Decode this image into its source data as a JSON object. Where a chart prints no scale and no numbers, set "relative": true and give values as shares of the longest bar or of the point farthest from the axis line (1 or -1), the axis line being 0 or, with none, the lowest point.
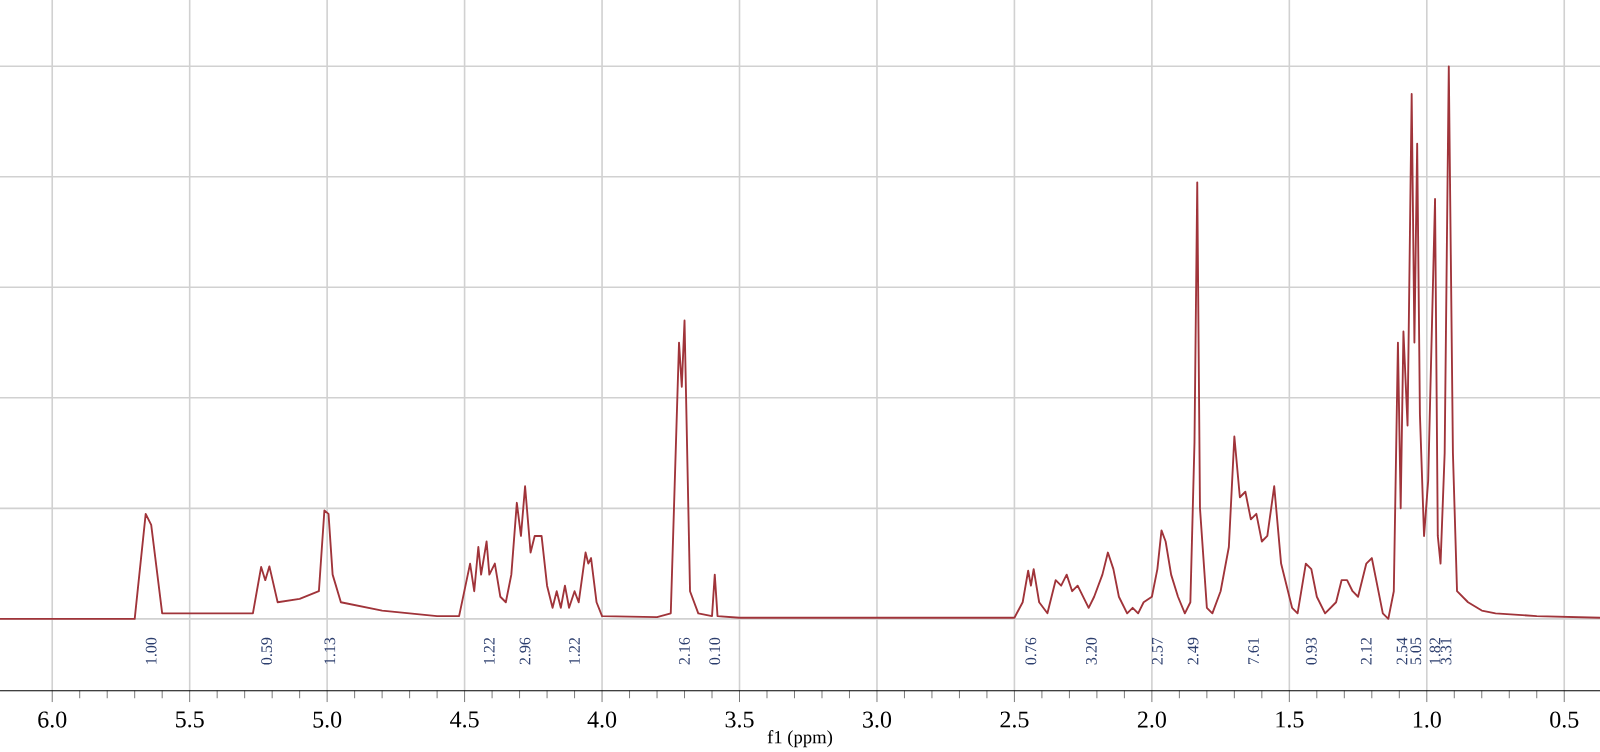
{
  "chart_data": {
    "type": "line",
    "relative": true,
    "xlabel": "f1 (ppm)",
    "xlim": [
      6.19,
      0.37
    ],
    "xticks": [
      {
        "value": 6.0,
        "label": "6.0"
      },
      {
        "value": 5.5,
        "label": "5.5"
      },
      {
        "value": 5.0,
        "label": "5.0"
      },
      {
        "value": 4.5,
        "label": "4.5"
      },
      {
        "value": 4.0,
        "label": "4.0"
      },
      {
        "value": 3.5,
        "label": "3.5"
      },
      {
        "value": 3.0,
        "label": "3.0"
      },
      {
        "value": 2.5,
        "label": "2.5"
      },
      {
        "value": 2.0,
        "label": "2.0"
      },
      {
        "value": 1.5,
        "label": "1.5"
      },
      {
        "value": 1.0,
        "label": "1.0"
      },
      {
        "value": 0.5,
        "label": "0.5"
      }
    ],
    "grid": true,
    "tick_labels": "x",
    "marker": "none",
    "line_style": "solid",
    "series": [
      {
        "color": "#a0343a",
        "x": [
          6.19,
          5.7,
          5.66,
          5.64,
          5.6,
          5.27,
          5.24,
          5.225,
          5.21,
          5.18,
          5.1,
          5.03,
          5.01,
          4.995,
          4.98,
          4.95,
          4.8,
          4.6,
          4.52,
          4.48,
          4.465,
          4.45,
          4.44,
          4.42,
          4.41,
          4.39,
          4.37,
          4.35,
          4.33,
          4.31,
          4.295,
          4.28,
          4.26,
          4.245,
          4.22,
          4.2,
          4.18,
          4.165,
          4.15,
          4.135,
          4.12,
          4.1,
          4.085,
          4.06,
          4.05,
          4.04,
          4.02,
          4.0,
          3.8,
          3.75,
          3.72,
          3.71,
          3.7,
          3.68,
          3.65,
          3.6,
          3.59,
          3.58,
          3.5,
          2.5,
          2.47,
          2.45,
          2.44,
          2.43,
          2.41,
          2.38,
          2.35,
          2.33,
          2.31,
          2.29,
          2.27,
          2.25,
          2.23,
          2.21,
          2.18,
          2.16,
          2.14,
          2.12,
          2.09,
          2.07,
          2.05,
          2.03,
          2.0,
          1.98,
          1.965,
          1.95,
          1.93,
          1.905,
          1.88,
          1.86,
          1.845,
          1.835,
          1.825,
          1.8,
          1.78,
          1.75,
          1.72,
          1.7,
          1.68,
          1.66,
          1.64,
          1.62,
          1.6,
          1.58,
          1.555,
          1.53,
          1.51,
          1.49,
          1.47,
          1.44,
          1.42,
          1.4,
          1.37,
          1.33,
          1.31,
          1.29,
          1.27,
          1.25,
          1.22,
          1.2,
          1.18,
          1.16,
          1.14,
          1.12,
          1.105,
          1.095,
          1.085,
          1.07,
          1.055,
          1.045,
          1.035,
          1.025,
          1.01,
          0.995,
          0.97,
          0.96,
          0.95,
          0.935,
          0.92,
          0.905,
          0.89,
          0.85,
          0.8,
          0.75,
          0.6,
          0.37
        ],
        "values": [
          0.0,
          0.0,
          0.19,
          0.17,
          0.01,
          0.01,
          0.094,
          0.07,
          0.095,
          0.03,
          0.036,
          0.05,
          0.196,
          0.19,
          0.08,
          0.03,
          0.015,
          0.005,
          0.005,
          0.1,
          0.05,
          0.13,
          0.08,
          0.14,
          0.08,
          0.1,
          0.04,
          0.03,
          0.08,
          0.21,
          0.15,
          0.24,
          0.12,
          0.15,
          0.15,
          0.06,
          0.02,
          0.05,
          0.02,
          0.06,
          0.02,
          0.05,
          0.03,
          0.12,
          0.1,
          0.11,
          0.03,
          0.005,
          0.003,
          0.01,
          0.5,
          0.42,
          0.54,
          0.05,
          0.01,
          0.005,
          0.08,
          0.005,
          0.002,
          0.002,
          0.03,
          0.087,
          0.06,
          0.09,
          0.03,
          0.01,
          0.07,
          0.06,
          0.08,
          0.05,
          0.06,
          0.04,
          0.02,
          0.04,
          0.08,
          0.12,
          0.09,
          0.04,
          0.01,
          0.02,
          0.01,
          0.03,
          0.04,
          0.09,
          0.16,
          0.14,
          0.08,
          0.04,
          0.01,
          0.03,
          0.32,
          0.79,
          0.2,
          0.02,
          0.01,
          0.05,
          0.13,
          0.33,
          0.22,
          0.23,
          0.18,
          0.19,
          0.14,
          0.15,
          0.24,
          0.1,
          0.06,
          0.02,
          0.01,
          0.1,
          0.09,
          0.04,
          0.01,
          0.03,
          0.07,
          0.07,
          0.05,
          0.04,
          0.1,
          0.11,
          0.06,
          0.01,
          0.0,
          0.05,
          0.5,
          0.2,
          0.52,
          0.35,
          0.95,
          0.5,
          0.86,
          0.37,
          0.15,
          0.25,
          0.76,
          0.15,
          0.1,
          0.3,
          1.0,
          0.3,
          0.05,
          0.03,
          0.015,
          0.01,
          0.005,
          0.002
        ]
      }
    ],
    "annotations": [
      "1.00",
      "0.59",
      "1.13",
      "1.22",
      "2.96",
      "1.22",
      "2.16",
      "0.10",
      "0.76",
      "3.20",
      "2.57",
      "2.49",
      "7.61",
      "0.93",
      "2.12",
      "2.54",
      "5.05",
      "1.82",
      "3.31"
    ]
  }
}
